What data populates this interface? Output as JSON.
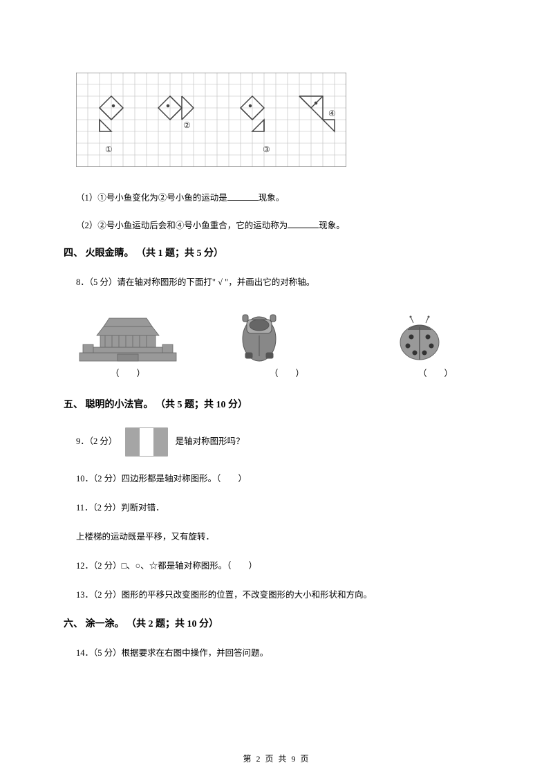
{
  "grid": {
    "cols": 23,
    "rows": 8,
    "cell_size": 17,
    "stroke_color": "#888888",
    "border_color": "#333333",
    "fish_stroke": "#333333",
    "labels": [
      "①",
      "②",
      "③",
      "④"
    ]
  },
  "q_sub_1": {
    "prefix": "（1）①号小鱼变化为②号小鱼的运动是",
    "suffix": "现象。"
  },
  "q_sub_2": {
    "prefix": "（2）②号小鱼运动后会和④号小鱼重合，它的运动称为",
    "suffix": "现象。"
  },
  "section4": {
    "title": "四、 火眼金睛。 （共 1 题；共 5 分）"
  },
  "q8": {
    "text": "8．（5 分）请在轴对称图形的下面打\" √ \"，并画出它的对称轴。"
  },
  "parens": {
    "open": "（",
    "close": "）",
    "item1_width": 150,
    "item2_width": 140,
    "item3_width": 120
  },
  "section5": {
    "title": "五、 聪明的小法官。 （共 5 题；共 10 分）"
  },
  "q9": {
    "prefix": "9．（2 分）",
    "suffix": "是轴对称图形吗？"
  },
  "q10": {
    "text": "10．（2 分）四边形都是轴对称图形。（　　）"
  },
  "q11": {
    "text": "11．（2 分）判断对错．"
  },
  "q11_body": {
    "text": "上楼梯的运动既是平移，又有旋转．"
  },
  "q12": {
    "text": "12．（2 分）□、○、☆都是轴对称图形。（　　）"
  },
  "q13": {
    "text": "13．（2 分）图形的平移只改变图形的位置，不改变图形的大小和形状和方向。"
  },
  "section6": {
    "title": "六、 涂一涂。 （共 2 题；共 10 分）"
  },
  "q14": {
    "text": "14．（5 分）根据要求在右图中操作，并回答问题。"
  },
  "footer": {
    "text": "第 2 页 共 9 页"
  },
  "building_colors": {
    "fill": "#999999",
    "dark": "#666666"
  },
  "car_colors": {
    "body": "#888888",
    "dark": "#555555"
  },
  "ladybug_colors": {
    "body": "#888888",
    "spots": "#333333"
  },
  "flag_colors": {
    "border": "#888888",
    "side": "#999999",
    "center": "#ffffff"
  }
}
